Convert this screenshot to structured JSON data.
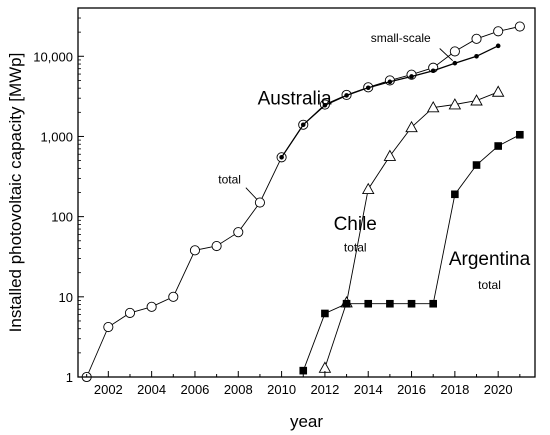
{
  "chart_data": {
    "type": "line",
    "title": "",
    "xlabel": "year",
    "ylabel": "Installed photovoltaic capacity [MWp]",
    "yscale": "log",
    "xlim": [
      2000.6,
      2021.7
    ],
    "ylim": [
      1,
      40000
    ],
    "grid": false,
    "xticks": [
      2002,
      2004,
      2006,
      2008,
      2010,
      2012,
      2014,
      2016,
      2018,
      2020
    ],
    "xtick_labels": [
      "2002",
      "2004",
      "2006",
      "2008",
      "2010",
      "2012",
      "2014",
      "2016",
      "2018",
      "2020"
    ],
    "yticks": [
      1,
      10,
      100,
      1000,
      10000
    ],
    "ytick_labels": [
      "1",
      "10",
      "100",
      "1,000",
      "10,000"
    ],
    "series": [
      {
        "key": "australia-total",
        "marker": "open-circle",
        "x": [
          2001,
          2002,
          2003,
          2004,
          2005,
          2006,
          2007,
          2008,
          2009,
          2010,
          2011,
          2012,
          2013,
          2014,
          2015,
          2016,
          2017,
          2018,
          2019,
          2020,
          2021
        ],
        "y": [
          1,
          4.2,
          6.3,
          7.5,
          10,
          38,
          43,
          64,
          150,
          550,
          1400,
          2500,
          3300,
          4100,
          5000,
          5900,
          7200,
          11500,
          16500,
          20500,
          23500
        ]
      },
      {
        "key": "australia-small-scale",
        "marker": "filled-dot",
        "x": [
          2010,
          2011,
          2012,
          2013,
          2014,
          2015,
          2016,
          2017,
          2018,
          2019,
          2020
        ],
        "y": [
          550,
          1400,
          2450,
          3250,
          4050,
          4800,
          5600,
          6600,
          8200,
          10000,
          13500
        ]
      },
      {
        "key": "chile-total",
        "marker": "open-triangle",
        "x": [
          2012,
          2013,
          2014,
          2015,
          2016,
          2017,
          2018,
          2019,
          2020
        ],
        "y": [
          1.3,
          8.5,
          220,
          570,
          1300,
          2300,
          2500,
          2800,
          3600
        ]
      },
      {
        "key": "argentina-total",
        "marker": "filled-square",
        "x": [
          2011,
          2012,
          2013,
          2014,
          2015,
          2016,
          2017,
          2018,
          2019,
          2020,
          2021
        ],
        "y": [
          1.2,
          6.2,
          8.2,
          8.2,
          8.2,
          8.2,
          8.2,
          190,
          440,
          760,
          1050
        ]
      }
    ],
    "annotations": [
      {
        "key": "australia",
        "text": "Australia",
        "x": 2010.6,
        "y": 2500,
        "style": "big"
      },
      {
        "key": "australia-total",
        "text": "total",
        "x": 2007.6,
        "y": 260,
        "style": "small"
      },
      {
        "key": "small-scale",
        "text": "small-scale",
        "x": 2015.5,
        "y": 15000,
        "style": "small"
      },
      {
        "key": "chile",
        "text": "Chile",
        "x": 2013.4,
        "y": 68,
        "style": "big"
      },
      {
        "key": "chile-total",
        "text": "total",
        "x": 2013.4,
        "y": 37,
        "style": "small"
      },
      {
        "key": "argentina",
        "text": "Argentina",
        "x": 2019.6,
        "y": 25,
        "style": "big"
      },
      {
        "key": "argentina-total",
        "text": "total",
        "x": 2019.6,
        "y": 12.5,
        "style": "small"
      }
    ]
  }
}
